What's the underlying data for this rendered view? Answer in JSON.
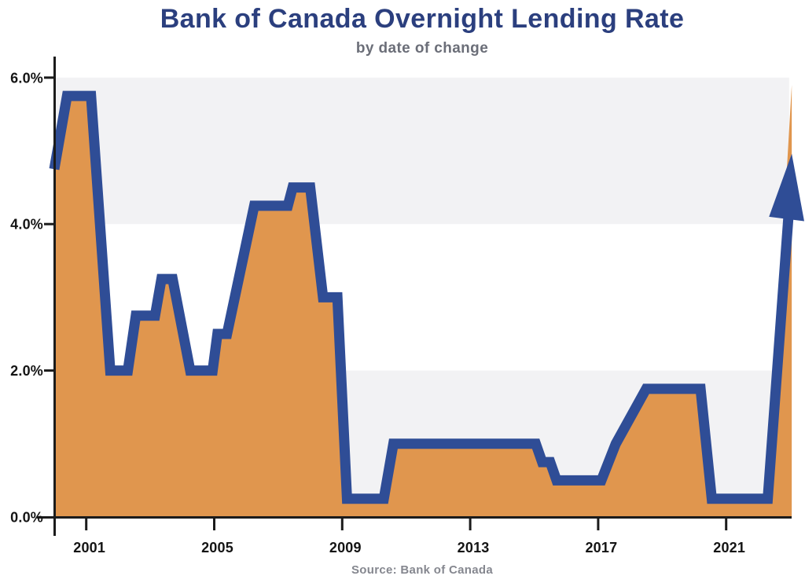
{
  "title": {
    "text": "Bank of Canada Overnight Lending Rate"
  },
  "subtitle": {
    "text": "by date of change"
  },
  "source": {
    "text": "Source: Bank of Canada"
  },
  "colors": {
    "line": "#2F4D96",
    "area": "#E0964E",
    "band": "#F2F2F4",
    "axis": "#1B1B1B",
    "title_text": "#2B3F7E",
    "subtitle_text": "#6B6E78",
    "source_text": "#85878F",
    "tick_text": "#141414"
  },
  "chart_data": {
    "type": "area",
    "title": "Bank of Canada Overnight Lending Rate",
    "subtitle": "by date of change",
    "xlabel": "",
    "ylabel": "",
    "xlim": [
      2000,
      2023.5
    ],
    "ylim": [
      0,
      6
    ],
    "grid": "horizontal shaded bands",
    "legend_position": "none",
    "band_xmax": 2022.97,
    "bands": [
      {
        "from": 0,
        "to": 2
      },
      {
        "from": 4,
        "to": 6
      }
    ],
    "x_ticks": [
      {
        "value": 2001,
        "label": "2001"
      },
      {
        "value": 2005,
        "label": "2005"
      },
      {
        "value": 2009,
        "label": "2009"
      },
      {
        "value": 2013,
        "label": "2013"
      },
      {
        "value": 2017,
        "label": "2017"
      },
      {
        "value": 2021,
        "label": "2021"
      }
    ],
    "y_ticks": [
      {
        "value": 0,
        "label": "0.0%"
      },
      {
        "value": 2,
        "label": "2.0%"
      },
      {
        "value": 4,
        "label": "4.0%"
      },
      {
        "value": 6,
        "label": "6.0%"
      }
    ],
    "series": [
      {
        "name": "Overnight lending rate (%) by date of change",
        "points": [
          [
            2000.0,
            4.75
          ],
          [
            2000.4,
            5.75
          ],
          [
            2001.15,
            5.75
          ],
          [
            2001.75,
            2.0
          ],
          [
            2002.3,
            2.0
          ],
          [
            2002.55,
            2.75
          ],
          [
            2003.15,
            2.75
          ],
          [
            2003.35,
            3.25
          ],
          [
            2003.7,
            3.25
          ],
          [
            2004.25,
            2.0
          ],
          [
            2004.95,
            2.0
          ],
          [
            2005.1,
            2.5
          ],
          [
            2005.4,
            2.5
          ],
          [
            2006.25,
            4.25
          ],
          [
            2007.3,
            4.25
          ],
          [
            2007.45,
            4.5
          ],
          [
            2008.0,
            4.5
          ],
          [
            2008.4,
            3.0
          ],
          [
            2008.85,
            3.0
          ],
          [
            2009.15,
            0.25
          ],
          [
            2010.3,
            0.25
          ],
          [
            2010.6,
            1.0
          ],
          [
            2015.05,
            1.0
          ],
          [
            2015.25,
            0.75
          ],
          [
            2015.5,
            0.75
          ],
          [
            2015.7,
            0.5
          ],
          [
            2017.1,
            0.5
          ],
          [
            2017.55,
            1.0
          ],
          [
            2018.5,
            1.75
          ],
          [
            2020.2,
            1.75
          ],
          [
            2020.55,
            0.25
          ],
          [
            2022.3,
            0.25
          ]
        ]
      }
    ],
    "arrow": {
      "description": "thick upward arrow at right edge showing 2022 rate surge",
      "shaft_to": [
        2022.98,
        4.3
      ],
      "head": [
        [
          2022.34,
          4.1
        ],
        [
          2023.05,
          4.96
        ],
        [
          2023.44,
          4.04
        ]
      ]
    },
    "area_close": {
      "top_right": [
        2023.05,
        5.9
      ],
      "bottom_right": [
        2023.05,
        0
      ]
    }
  }
}
